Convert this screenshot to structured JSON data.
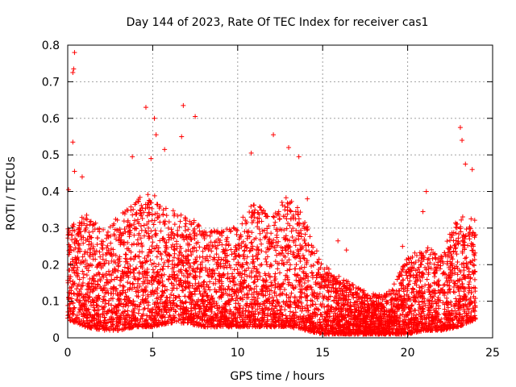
{
  "chart_data": {
    "type": "scatter",
    "title": "Day 144 of 2023, Rate Of TEC Index for receiver cas1",
    "xlabel": "GPS time / hours",
    "ylabel": "ROTI / TECUs",
    "xlim": [
      0,
      25
    ],
    "ylim": [
      0,
      0.8
    ],
    "xticks": [
      0,
      5,
      10,
      15,
      20,
      25
    ],
    "yticks": [
      0,
      0.1,
      0.2,
      0.3,
      0.4,
      0.5,
      0.6,
      0.7,
      0.8
    ],
    "xtick_labels": [
      "0",
      "5",
      "10",
      "15",
      "20",
      "25"
    ],
    "ytick_labels": [
      "0",
      "0.1",
      "0.2",
      "0.3",
      "0.4",
      "0.5",
      "0.6",
      "0.7",
      "0.8"
    ],
    "grid": true,
    "marker": "+",
    "color": "#ff0000",
    "outliers": [
      {
        "x": 0.4,
        "y": 0.78
      },
      {
        "x": 0.35,
        "y": 0.735
      },
      {
        "x": 0.3,
        "y": 0.725
      },
      {
        "x": 0.3,
        "y": 0.535
      },
      {
        "x": 0.4,
        "y": 0.455
      },
      {
        "x": 0.85,
        "y": 0.44
      },
      {
        "x": 0.05,
        "y": 0.405
      },
      {
        "x": 4.6,
        "y": 0.63
      },
      {
        "x": 5.1,
        "y": 0.6
      },
      {
        "x": 6.8,
        "y": 0.635
      },
      {
        "x": 7.5,
        "y": 0.605
      },
      {
        "x": 6.7,
        "y": 0.55
      },
      {
        "x": 5.2,
        "y": 0.555
      },
      {
        "x": 5.7,
        "y": 0.515
      },
      {
        "x": 12.1,
        "y": 0.555
      },
      {
        "x": 13.0,
        "y": 0.52
      },
      {
        "x": 13.6,
        "y": 0.495
      },
      {
        "x": 10.8,
        "y": 0.505
      },
      {
        "x": 23.1,
        "y": 0.575
      },
      {
        "x": 23.2,
        "y": 0.54
      },
      {
        "x": 23.4,
        "y": 0.475
      },
      {
        "x": 23.8,
        "y": 0.46
      },
      {
        "x": 21.1,
        "y": 0.4
      },
      {
        "x": 20.9,
        "y": 0.345
      },
      {
        "x": 15.9,
        "y": 0.265
      },
      {
        "x": 16.4,
        "y": 0.24
      },
      {
        "x": 19.7,
        "y": 0.25
      },
      {
        "x": 3.8,
        "y": 0.495
      },
      {
        "x": 4.9,
        "y": 0.49
      },
      {
        "x": 14.1,
        "y": 0.38
      }
    ],
    "envelope_x": [
      0,
      1,
      2,
      3,
      4,
      5,
      6,
      7,
      8,
      9,
      10,
      11,
      12,
      13,
      14,
      15,
      16,
      17,
      18,
      19,
      20,
      21,
      22,
      23,
      24
    ],
    "envelope_top": [
      0.3,
      0.34,
      0.3,
      0.33,
      0.38,
      0.4,
      0.35,
      0.34,
      0.3,
      0.29,
      0.31,
      0.38,
      0.33,
      0.4,
      0.32,
      0.2,
      0.17,
      0.14,
      0.12,
      0.13,
      0.22,
      0.25,
      0.23,
      0.34,
      0.33
    ],
    "envelope_bottom": [
      0.05,
      0.03,
      0.02,
      0.02,
      0.03,
      0.03,
      0.04,
      0.04,
      0.03,
      0.03,
      0.03,
      0.03,
      0.03,
      0.03,
      0.02,
      0.01,
      0.01,
      0.01,
      0.01,
      0.01,
      0.01,
      0.02,
      0.02,
      0.03,
      0.05
    ]
  }
}
